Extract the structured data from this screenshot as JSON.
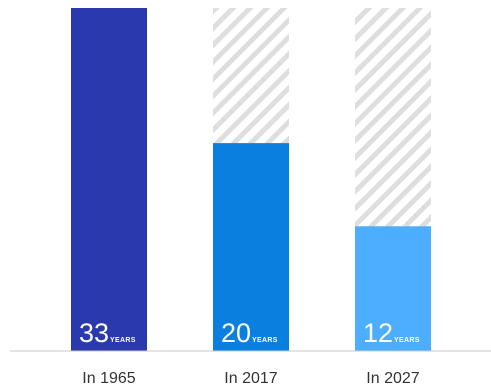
{
  "chart_data": {
    "type": "bar",
    "categories": [
      "In 1965",
      "In 2017",
      "In 2027"
    ],
    "values": [
      33,
      20,
      12
    ],
    "unit_label": "YEARS",
    "ylim": [
      0,
      33
    ],
    "bar_colors": [
      "#2a39ad",
      "#0a7fe0",
      "#4daeff"
    ],
    "placeholder_pattern": "light-gray-diagonal-stripes",
    "placeholder_color": "#d9d9d9",
    "axis_color": "#c8c8c8",
    "title": "",
    "xlabel": "",
    "ylabel": ""
  }
}
